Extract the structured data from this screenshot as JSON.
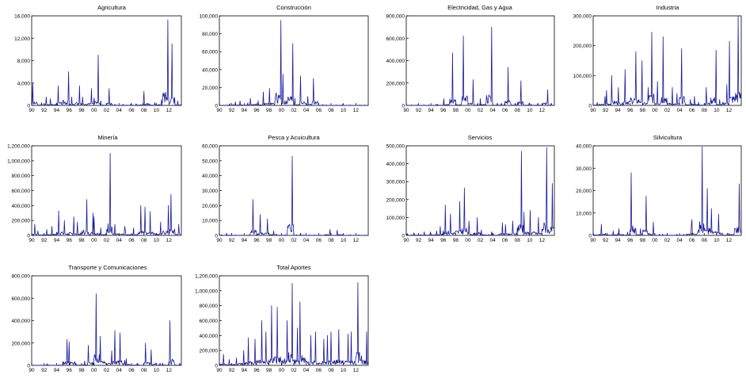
{
  "colors": {
    "line": "#1a1a9c",
    "axis": "#000000",
    "background": "#ffffff"
  },
  "x_ticks": [
    "90",
    "92",
    "94",
    "96",
    "98",
    "00",
    "02",
    "04",
    "06",
    "08",
    "10",
    "12"
  ],
  "chart_data": [
    {
      "type": "line",
      "title": "Agricultura",
      "ylim": [
        0,
        16000
      ],
      "yticks": [
        0,
        4000,
        8000,
        12000,
        16000
      ],
      "ytick_labels": [
        "0",
        "4,000",
        "8,000",
        "12,000",
        "16,000"
      ],
      "x": [
        "1990",
        "1991",
        "1992",
        "1993",
        "1994",
        "1995",
        "1996",
        "1997",
        "1998",
        "1999",
        "2000",
        "2001",
        "2002",
        "2003",
        "2004",
        "2005",
        "2006",
        "2007",
        "2008",
        "2009",
        "2010",
        "2011",
        "2012",
        "2013"
      ],
      "series": [
        {
          "values": [
            4000,
            500,
            1500,
            1200,
            3500,
            6000,
            1500,
            3500,
            1500,
            3000,
            9000,
            800,
            3000,
            200,
            200,
            300,
            300,
            800,
            2500,
            500,
            1000,
            15300,
            11000,
            800
          ]
        }
      ]
    },
    {
      "type": "line",
      "title": "Construcción",
      "ylim": [
        0,
        100000
      ],
      "yticks": [
        0,
        20000,
        40000,
        60000,
        80000,
        100000
      ],
      "ytick_labels": [
        "0",
        "20,000",
        "40,000",
        "60,000",
        "80,000",
        "100,000"
      ],
      "x": [
        "1990",
        "1991",
        "1992",
        "1993",
        "1994",
        "1995",
        "1996",
        "1997",
        "1998",
        "1999",
        "2000",
        "2001",
        "2002",
        "2003",
        "2004",
        "2005",
        "2006",
        "2007",
        "2008",
        "2009",
        "2010",
        "2011",
        "2012",
        "2013"
      ],
      "series": [
        {
          "values": [
            1000,
            2000,
            4000,
            5000,
            3000,
            8000,
            5000,
            15000,
            19000,
            95000,
            35000,
            69000,
            8000,
            33000,
            10000,
            30000,
            1000,
            500,
            500,
            1000,
            500,
            500,
            500,
            500
          ]
        }
      ]
    },
    {
      "type": "line",
      "title": "Electricidad,  Gas y Agua",
      "ylim": [
        0,
        800000
      ],
      "yticks": [
        0,
        200000,
        400000,
        600000,
        800000
      ],
      "ytick_labels": [
        "0",
        "200,000",
        "400,000",
        "600,000",
        "800,000"
      ],
      "x": [
        "1990",
        "1991",
        "1992",
        "1993",
        "1994",
        "1995",
        "1996",
        "1997",
        "1998",
        "1999",
        "2000",
        "2001",
        "2002",
        "2003",
        "2004",
        "2005",
        "2006",
        "2007",
        "2008",
        "2009",
        "2010",
        "2011",
        "2012",
        "2013"
      ],
      "series": [
        {
          "values": [
            5000,
            5000,
            5000,
            5000,
            10000,
            10000,
            60000,
            470000,
            50000,
            620000,
            230000,
            20000,
            60000,
            700000,
            20000,
            20000,
            340000,
            20000,
            220000,
            20000,
            10000,
            20000,
            140000,
            20000
          ]
        }
      ]
    },
    {
      "type": "line",
      "title": "Industria",
      "ylim": [
        0,
        300000
      ],
      "yticks": [
        0,
        100000,
        200000,
        300000
      ],
      "ytick_labels": [
        "0",
        "100,000",
        "200,000",
        "300,000"
      ],
      "x": [
        "1990",
        "1991",
        "1992",
        "1993",
        "1994",
        "1995",
        "1996",
        "1997",
        "1998",
        "1999",
        "2000",
        "2001",
        "2002",
        "2003",
        "2004",
        "2005",
        "2006",
        "2007",
        "2008",
        "2009",
        "2010",
        "2011",
        "2012",
        "2013"
      ],
      "series": [
        {
          "values": [
            10000,
            30000,
            50000,
            100000,
            60000,
            120000,
            180000,
            150000,
            60000,
            245000,
            80000,
            230000,
            60000,
            40000,
            190000,
            20000,
            30000,
            10000,
            60000,
            185000,
            20000,
            70000,
            215000,
            300000
          ]
        }
      ]
    },
    {
      "type": "line",
      "title": "Minería",
      "ylim": [
        0,
        1200000
      ],
      "yticks": [
        0,
        200000,
        400000,
        600000,
        800000,
        1000000,
        1200000
      ],
      "ytick_labels": [
        "0",
        "200,000",
        "400,000",
        "600,000",
        "800,000",
        "1,000,000",
        "1,200,000"
      ],
      "x": [
        "1990",
        "1991",
        "1992",
        "1993",
        "1994",
        "1995",
        "1996",
        "1997",
        "1998",
        "1999",
        "2000",
        "2001",
        "2002",
        "2003",
        "2004",
        "2005",
        "2006",
        "2007",
        "2008",
        "2009",
        "2010",
        "2011",
        "2012",
        "2013"
      ],
      "series": [
        {
          "values": [
            150000,
            60000,
            80000,
            120000,
            330000,
            200000,
            250000,
            180000,
            480000,
            300000,
            250000,
            100000,
            1100000,
            150000,
            120000,
            80000,
            100000,
            400000,
            380000,
            320000,
            180000,
            400000,
            550000,
            150000
          ]
        }
      ]
    },
    {
      "type": "line",
      "title": "Pesca y Acuicultura",
      "ylim": [
        0,
        60000
      ],
      "yticks": [
        0,
        10000,
        20000,
        30000,
        40000,
        50000,
        60000
      ],
      "ytick_labels": [
        "0",
        "10,000",
        "20,000",
        "30,000",
        "40,000",
        "50,000",
        "60,000"
      ],
      "x": [
        "1990",
        "1991",
        "1992",
        "1993",
        "1994",
        "1995",
        "1996",
        "1997",
        "1998",
        "1999",
        "2000",
        "2001",
        "2002",
        "2003",
        "2004",
        "2005",
        "2006",
        "2007",
        "2008",
        "2009",
        "2010",
        "2011",
        "2012",
        "2013"
      ],
      "series": [
        {
          "values": [
            500,
            1500,
            200,
            200,
            200,
            24000,
            14000,
            11000,
            3000,
            1000,
            500,
            53000,
            500,
            1500,
            300,
            300,
            300,
            4000,
            500,
            3500,
            300,
            300,
            300,
            300
          ]
        }
      ]
    },
    {
      "type": "line",
      "title": "Servicios",
      "ylim": [
        0,
        500000
      ],
      "yticks": [
        0,
        100000,
        200000,
        300000,
        400000,
        500000
      ],
      "ytick_labels": [
        "0",
        "100,000",
        "200,000",
        "300,000",
        "400,000",
        "500,000"
      ],
      "x": [
        "1990",
        "1991",
        "1992",
        "1993",
        "1994",
        "1995",
        "1996",
        "1997",
        "1998",
        "1999",
        "2000",
        "2001",
        "2002",
        "2003",
        "2004",
        "2005",
        "2006",
        "2007",
        "2008",
        "2009",
        "2010",
        "2011",
        "2012",
        "2013"
      ],
      "series": [
        {
          "values": [
            10000,
            15000,
            20000,
            20000,
            25000,
            50000,
            170000,
            120000,
            190000,
            265000,
            80000,
            100000,
            30000,
            20000,
            10000,
            70000,
            60000,
            80000,
            470000,
            130000,
            140000,
            100000,
            490000,
            290000
          ]
        }
      ]
    },
    {
      "type": "line",
      "title": "Silvicultura",
      "ylim": [
        0,
        40000
      ],
      "yticks": [
        0,
        10000,
        20000,
        30000,
        40000
      ],
      "ytick_labels": [
        "0",
        "10,000",
        "20,000",
        "30,000",
        "40,000"
      ],
      "x": [
        "1990",
        "1991",
        "1992",
        "1993",
        "1994",
        "1995",
        "1996",
        "1997",
        "1998",
        "1999",
        "2000",
        "2001",
        "2002",
        "2003",
        "2004",
        "2005",
        "2006",
        "2007",
        "2008",
        "2009",
        "2010",
        "2011",
        "2012",
        "2013"
      ],
      "series": [
        {
          "values": [
            1500,
            5000,
            1000,
            2000,
            3000,
            1500,
            28000,
            3000,
            17500,
            6000,
            500,
            500,
            500,
            500,
            500,
            4500,
            7000,
            39500,
            21000,
            12000,
            9500,
            1000,
            3000,
            23000
          ]
        }
      ]
    },
    {
      "type": "line",
      "title": "Transporte  y  Comunicaciones",
      "ylim": [
        0,
        800000
      ],
      "yticks": [
        0,
        200000,
        400000,
        600000,
        800000
      ],
      "ytick_labels": [
        "0",
        "200,000",
        "400,000",
        "600,000",
        "800,000"
      ],
      "x": [
        "1990",
        "1991",
        "1992",
        "1993",
        "1994",
        "1995",
        "1996",
        "1997",
        "1998",
        "1999",
        "2000",
        "2001",
        "2002",
        "2003",
        "2004",
        "2005",
        "2006",
        "2007",
        "2008",
        "2009",
        "2010",
        "2011",
        "2012",
        "2013"
      ],
      "series": [
        {
          "values": [
            2000,
            2000,
            15000,
            2000,
            5000,
            230000,
            210000,
            20000,
            40000,
            180000,
            640000,
            260000,
            130000,
            310000,
            290000,
            60000,
            20000,
            10000,
            200000,
            140000,
            20000,
            20000,
            400000,
            20000
          ]
        }
      ]
    },
    {
      "type": "line",
      "title": "Total Aportes",
      "ylim": [
        0,
        1200000
      ],
      "yticks": [
        0,
        200000,
        400000,
        600000,
        800000,
        1000000,
        1200000
      ],
      "ytick_labels": [
        "0",
        "200,000",
        "400,000",
        "600,000",
        "800,000",
        "1,000,000",
        "1,200,000"
      ],
      "x": [
        "1990",
        "1991",
        "1992",
        "1993",
        "1994",
        "1995",
        "1996",
        "1997",
        "1998",
        "1999",
        "2000",
        "2001",
        "2002",
        "2003",
        "2004",
        "2005",
        "2006",
        "2007",
        "2008",
        "2009",
        "2010",
        "2011",
        "2012",
        "2013"
      ],
      "series": [
        {
          "values": [
            150000,
            80000,
            100000,
            200000,
            370000,
            350000,
            600000,
            450000,
            800000,
            780000,
            600000,
            1100000,
            500000,
            850000,
            400000,
            450000,
            350000,
            400000,
            450000,
            480000,
            420000,
            450000,
            1110000,
            450000
          ]
        }
      ]
    }
  ]
}
